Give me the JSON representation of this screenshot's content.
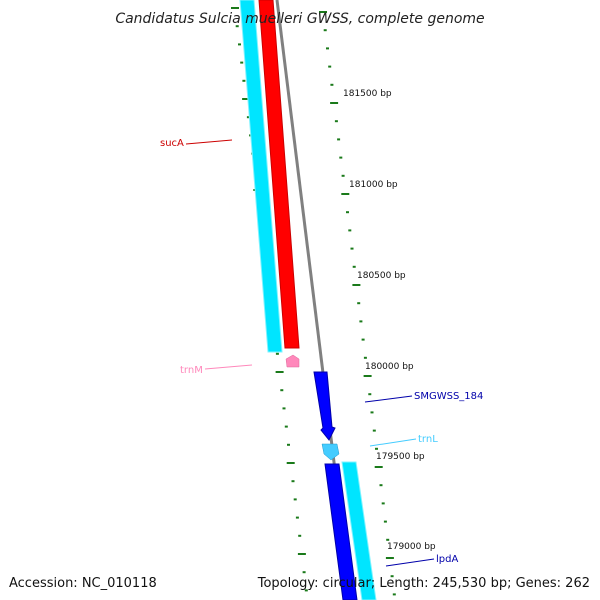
{
  "title": "Candidatus Sulcia muelleri GWSS, complete genome",
  "accession": "Accession: NC_010118",
  "topology": "Topology: circular; Length: 245,530 bp; Genes: 262",
  "colors": {
    "backbone": "#808080",
    "tick": "#1a7a1a",
    "cyan": "#00e5ff",
    "red": "#ff0000",
    "blue": "#0000ff",
    "pink": "#ff88bb",
    "skyblue": "#44ccff",
    "darkred": "#cc0000",
    "darkblue": "#0000aa"
  },
  "scale_labels": [
    "181500 bp",
    "181000 bp",
    "180500 bp",
    "180000 bp",
    "179500 bp",
    "179000 bp"
  ],
  "genes": [
    {
      "name": "sucA",
      "type": "gene",
      "color": "#ff0000"
    },
    {
      "name": "trnM",
      "type": "tRNA",
      "color": "#ff88bb"
    },
    {
      "name": "SMGWSS_184",
      "type": "gene",
      "color": "#0000ff"
    },
    {
      "name": "trnL",
      "type": "tRNA",
      "color": "#44ccff"
    },
    {
      "name": "lpdA",
      "type": "gene",
      "color": "#0000ff"
    }
  ]
}
